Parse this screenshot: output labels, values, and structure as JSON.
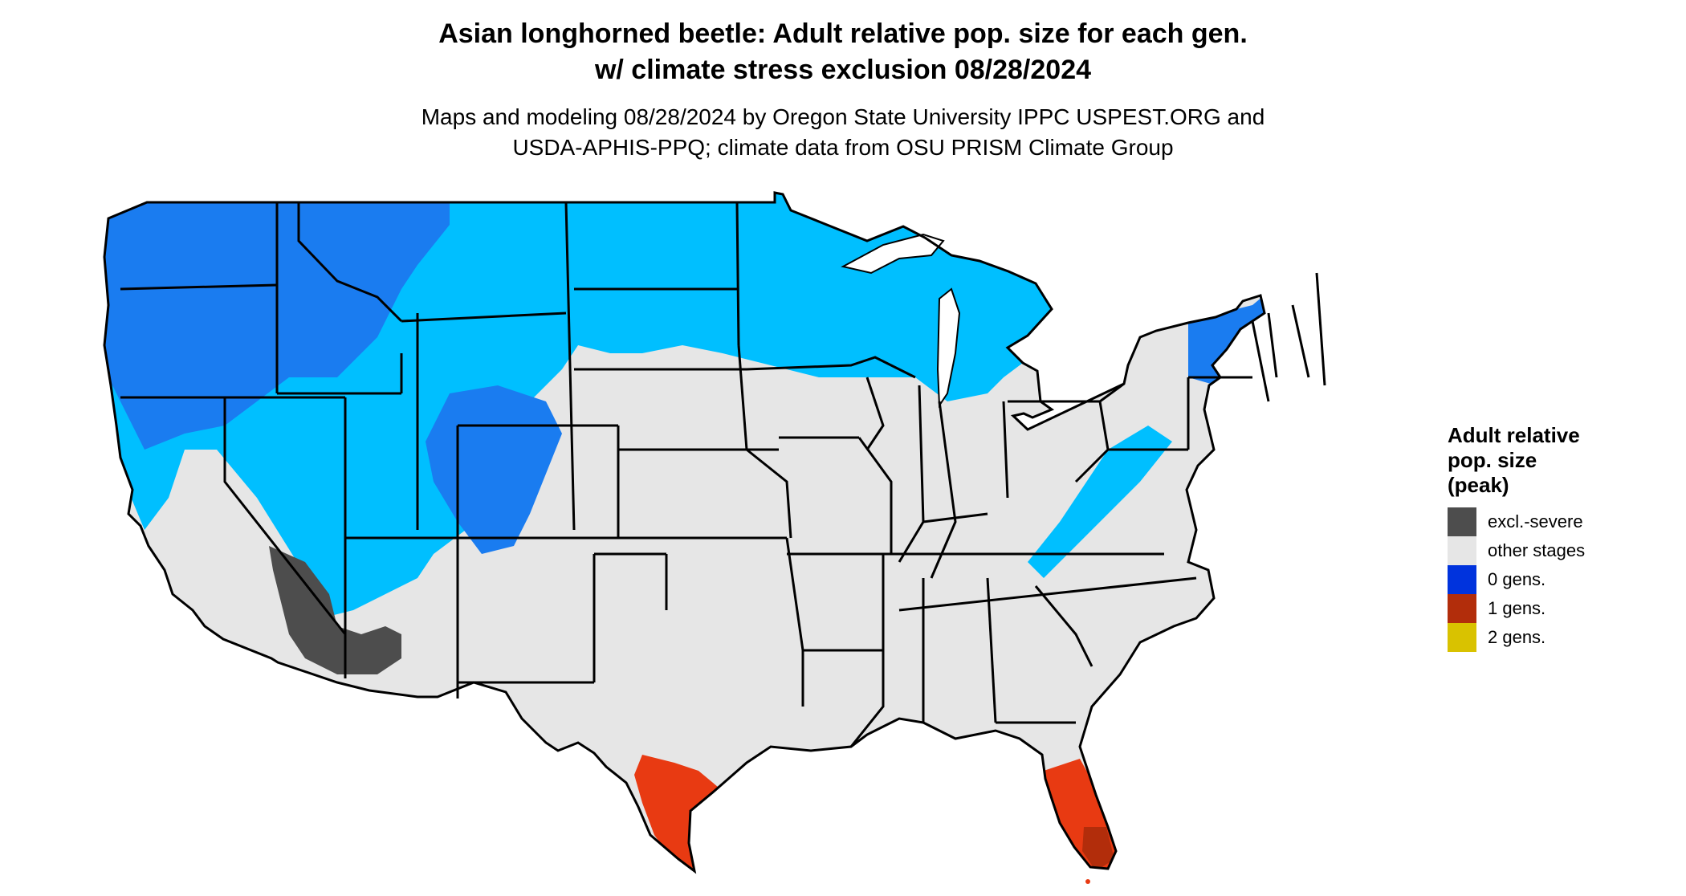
{
  "title": {
    "line1": "Asian longhorned beetle: Adult relative pop. size for each gen.",
    "line2": "w/ climate stress exclusion 08/28/2024"
  },
  "subtitle": {
    "line1": "Maps and modeling 08/28/2024 by Oregon State University IPPC USPEST.ORG and",
    "line2": "USDA-APHIS-PPQ; climate data from OSU PRISM Climate Group"
  },
  "legend": {
    "title_lines": [
      "Adult relative",
      "pop. size",
      "(peak)"
    ],
    "items": [
      {
        "label": "excl.-severe",
        "color": "#4d4d4d"
      },
      {
        "label": "other stages",
        "color": "#e6e6e6"
      },
      {
        "label": "0 gens.",
        "color": "#0033dd"
      },
      {
        "label": "1 gens.",
        "color": "#b22d0b"
      },
      {
        "label": "2 gens.",
        "color": "#d9c200"
      }
    ]
  },
  "map_colors": {
    "land": "#e6e6e6",
    "zero_gen_light": "#00bfff",
    "zero_gen_mid": "#1a7cf0",
    "zero_gen_dark": "#0033dd",
    "one_gen": "#e83a12",
    "one_gen_dark": "#b22d0b",
    "excluded": "#4d4d4d",
    "border": "#000000"
  }
}
